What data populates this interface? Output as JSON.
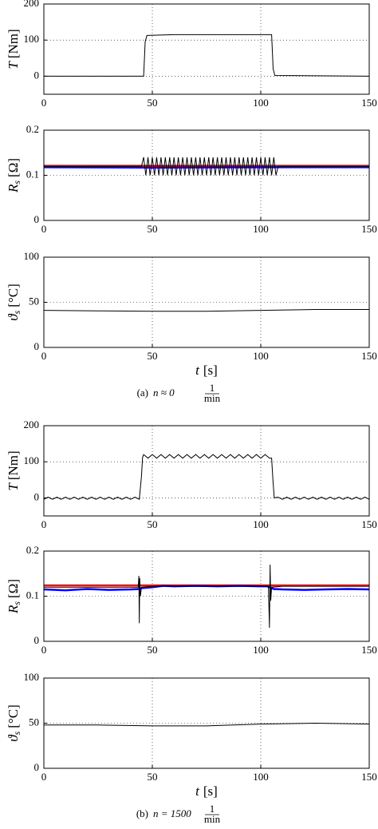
{
  "chart_data": [
    {
      "type": "line",
      "ylabel": {
        "symbol": "T",
        "unit": "[Nm]"
      },
      "xlim": [
        0,
        150
      ],
      "xticks": [
        0,
        50,
        100,
        150
      ],
      "ylim": [
        -50,
        200
      ],
      "yticks": [
        0,
        100,
        200
      ],
      "grid": true,
      "series": [
        {
          "color": "#000000",
          "x": [
            0,
            46,
            46.3,
            46.7,
            47.5,
            60,
            80,
            105,
            105.3,
            105.7,
            106.5,
            150
          ],
          "values": [
            0,
            0,
            40,
            95,
            113,
            115,
            115,
            115,
            75,
            20,
            2,
            0
          ]
        }
      ]
    },
    {
      "type": "line",
      "ylabel": {
        "symbol": "R",
        "subscript": "s",
        "unit": "[Ω]"
      },
      "xlim": [
        0,
        150
      ],
      "xticks": [
        0,
        50,
        100,
        150
      ],
      "ylim": [
        0,
        0.2
      ],
      "yticks": [
        0,
        0.1,
        0.2
      ],
      "grid": true,
      "series": [
        {
          "color": "#000000",
          "x": [
            0,
            45,
            46,
            47,
            48,
            49,
            50,
            51,
            52,
            53,
            54,
            55,
            56,
            57,
            58,
            59,
            60,
            61,
            62,
            63,
            64,
            65,
            66,
            67,
            68,
            69,
            70,
            71,
            72,
            73,
            74,
            75,
            76,
            77,
            78,
            79,
            80,
            81,
            82,
            83,
            84,
            85,
            86,
            87,
            88,
            89,
            90,
            91,
            92,
            93,
            94,
            95,
            96,
            97,
            98,
            99,
            100,
            101,
            102,
            103,
            104,
            105,
            106,
            107,
            108,
            150
          ],
          "values": [
            0.12,
            0.12,
            0.14,
            0.1,
            0.14,
            0.1,
            0.14,
            0.1,
            0.14,
            0.1,
            0.14,
            0.1,
            0.14,
            0.1,
            0.14,
            0.1,
            0.14,
            0.1,
            0.14,
            0.1,
            0.14,
            0.1,
            0.14,
            0.1,
            0.14,
            0.1,
            0.14,
            0.1,
            0.14,
            0.1,
            0.14,
            0.1,
            0.14,
            0.1,
            0.14,
            0.1,
            0.14,
            0.1,
            0.14,
            0.1,
            0.14,
            0.1,
            0.14,
            0.1,
            0.14,
            0.1,
            0.14,
            0.1,
            0.14,
            0.1,
            0.14,
            0.1,
            0.14,
            0.1,
            0.14,
            0.1,
            0.14,
            0.1,
            0.14,
            0.1,
            0.14,
            0.1,
            0.14,
            0.1,
            0.12,
            0.12
          ]
        },
        {
          "color": "#ff0000",
          "x": [
            0,
            150
          ],
          "values": [
            0.121,
            0.121
          ]
        },
        {
          "color": "#0000ff",
          "x": [
            0,
            50,
            100,
            150
          ],
          "values": [
            0.118,
            0.117,
            0.118,
            0.118
          ]
        }
      ]
    },
    {
      "type": "line",
      "ylabel": {
        "symbol": "ϑ",
        "subscript": "s",
        "unit": "[°C]"
      },
      "xlabel": {
        "symbol": "t",
        "unit": "[s]"
      },
      "xlim": [
        0,
        150
      ],
      "xticks": [
        0,
        50,
        100,
        150
      ],
      "ylim": [
        0,
        100
      ],
      "yticks": [
        0,
        50,
        100
      ],
      "grid": true,
      "caption": {
        "label": "(a)",
        "expression": "n ≈ 0",
        "numerator": "1",
        "denominator": "min"
      },
      "series": [
        {
          "color": "#000000",
          "x": [
            0,
            25,
            50,
            75,
            100,
            125,
            150
          ],
          "values": [
            41,
            40.5,
            40,
            40,
            41,
            42,
            42
          ]
        }
      ]
    },
    {
      "type": "line",
      "ylabel": {
        "symbol": "T",
        "unit": "[Nm]"
      },
      "xlim": [
        0,
        150
      ],
      "xticks": [
        0,
        50,
        100,
        150
      ],
      "ylim": [
        -50,
        200
      ],
      "yticks": [
        0,
        100,
        200
      ],
      "grid": true,
      "series": [
        {
          "color": "#000000",
          "x": [
            0,
            2,
            4,
            6,
            8,
            10,
            12,
            14,
            16,
            18,
            20,
            22,
            24,
            26,
            28,
            30,
            32,
            34,
            36,
            38,
            40,
            42,
            44,
            45,
            45.5,
            46,
            48,
            50,
            52,
            54,
            56,
            58,
            60,
            62,
            64,
            66,
            68,
            70,
            72,
            74,
            76,
            78,
            80,
            82,
            84,
            86,
            88,
            90,
            92,
            94,
            96,
            98,
            100,
            102,
            104,
            105,
            105.6,
            106.2,
            108,
            110,
            112,
            114,
            116,
            118,
            120,
            122,
            124,
            126,
            128,
            130,
            132,
            134,
            136,
            138,
            140,
            142,
            144,
            146,
            148,
            150
          ],
          "values": [
            -4,
            2,
            -4,
            2,
            -4,
            2,
            -4,
            2,
            -4,
            2,
            -4,
            2,
            -4,
            2,
            -4,
            2,
            -4,
            2,
            -4,
            2,
            -4,
            2,
            -4,
            60,
            112,
            120,
            110,
            120,
            110,
            120,
            110,
            120,
            110,
            120,
            110,
            120,
            110,
            120,
            110,
            120,
            110,
            120,
            110,
            120,
            110,
            120,
            110,
            120,
            110,
            120,
            110,
            120,
            110,
            120,
            110,
            110,
            50,
            0,
            2,
            -4,
            2,
            -4,
            2,
            -4,
            2,
            -4,
            2,
            -4,
            2,
            -4,
            2,
            -4,
            2,
            -4,
            2,
            -4,
            2,
            -4,
            2,
            -4
          ]
        }
      ]
    },
    {
      "type": "line",
      "ylabel": {
        "symbol": "R",
        "subscript": "s",
        "unit": "[Ω]"
      },
      "xlim": [
        0,
        150
      ],
      "xticks": [
        0,
        50,
        100,
        150
      ],
      "ylim": [
        0,
        0.2
      ],
      "yticks": [
        0,
        0.1,
        0.2
      ],
      "grid": true,
      "series": [
        {
          "color": "#000000",
          "x": [
            0,
            43.5,
            43.8,
            44,
            44.2,
            44.5,
            45,
            50,
            103.5,
            103.8,
            104,
            104.3,
            104.6,
            105,
            110,
            150
          ],
          "values": [
            0.12,
            0.12,
            0.145,
            0.04,
            0.14,
            0.1,
            0.12,
            0.122,
            0.122,
            0.07,
            0.03,
            0.17,
            0.09,
            0.12,
            0.122,
            0.122
          ]
        },
        {
          "color": "#ff0000",
          "x": [
            0,
            150
          ],
          "values": [
            0.124,
            0.124
          ]
        },
        {
          "color": "#0000ff",
          "x": [
            0,
            10,
            20,
            30,
            40,
            44,
            45,
            50,
            55,
            60,
            70,
            80,
            90,
            100,
            103,
            104,
            105,
            106,
            110,
            120,
            130,
            140,
            150
          ],
          "values": [
            0.115,
            0.113,
            0.116,
            0.114,
            0.115,
            0.116,
            0.118,
            0.12,
            0.123,
            0.122,
            0.123,
            0.122,
            0.123,
            0.122,
            0.122,
            0.12,
            0.118,
            0.116,
            0.115,
            0.114,
            0.115,
            0.116,
            0.115
          ]
        }
      ]
    },
    {
      "type": "line",
      "ylabel": {
        "symbol": "ϑ",
        "subscript": "s",
        "unit": "[°C]"
      },
      "xlabel": {
        "symbol": "t",
        "unit": "[s]"
      },
      "xlim": [
        0,
        150
      ],
      "xticks": [
        0,
        50,
        100,
        150
      ],
      "ylim": [
        0,
        100
      ],
      "yticks": [
        0,
        50,
        100
      ],
      "grid": true,
      "caption": {
        "label": "(b)",
        "expression": "n = 1500",
        "numerator": "1",
        "denominator": "min"
      },
      "series": [
        {
          "color": "#000000",
          "x": [
            0,
            25,
            50,
            75,
            100,
            125,
            150
          ],
          "values": [
            48,
            48,
            47,
            47,
            49,
            50,
            49
          ]
        }
      ]
    }
  ]
}
